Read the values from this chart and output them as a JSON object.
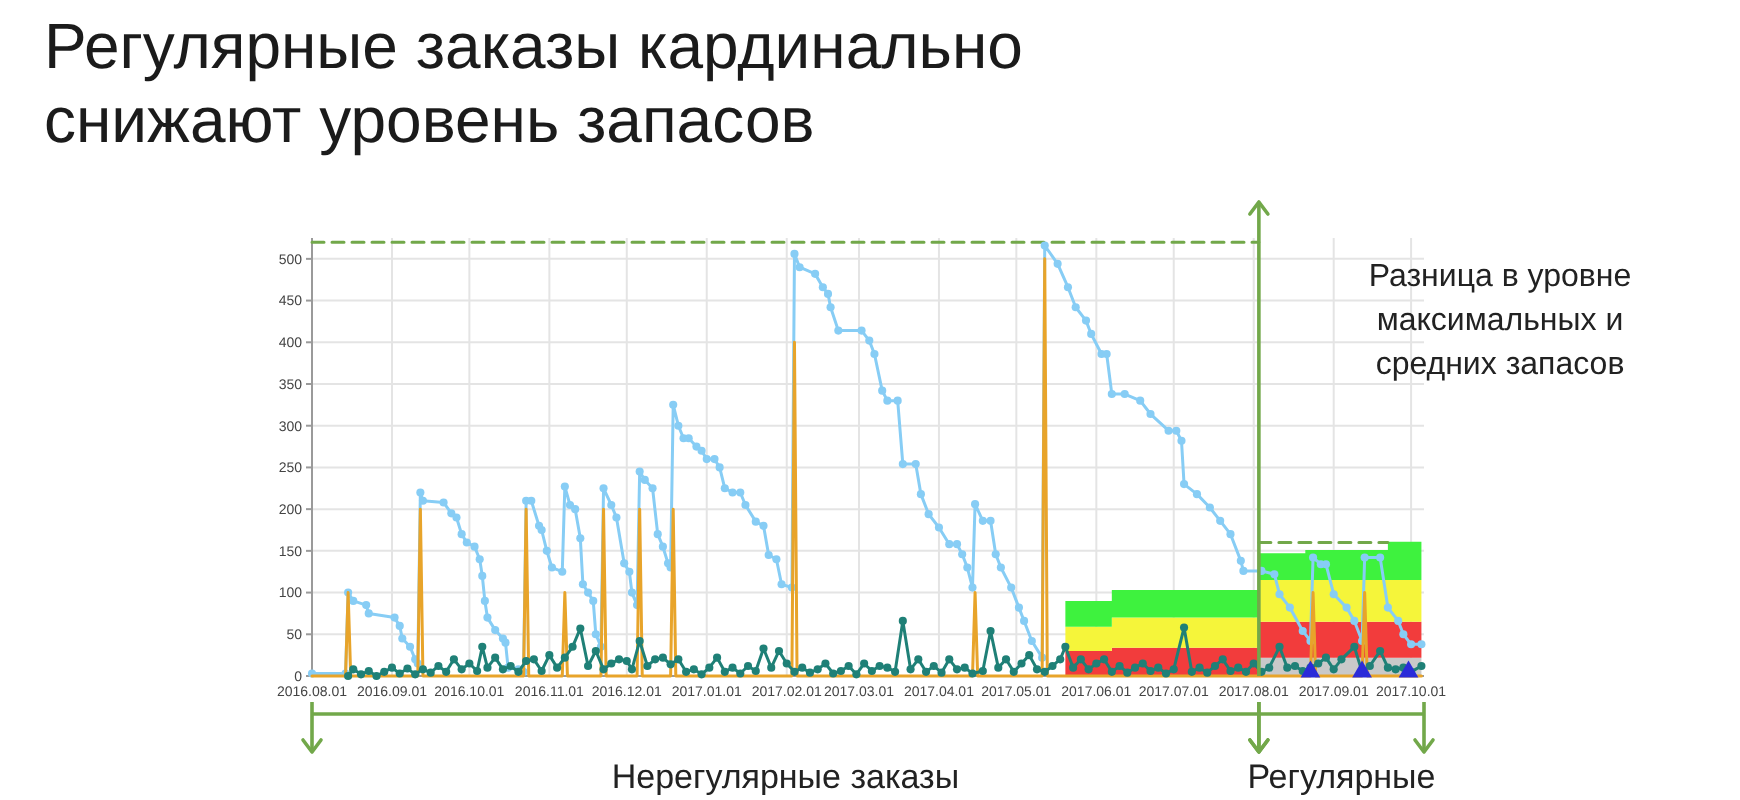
{
  "chart_data": {
    "type": "line",
    "title": "Регулярные заказы кардинально\nснижают уровень запасов",
    "annotations": [
      "Разница в уровне\nмаксимальных и\nсредних запасов",
      "Нерегулярные заказы",
      "Регулярные"
    ],
    "xlim": [
      "2016-08-01",
      "2017-10-06"
    ],
    "xticks": [
      {
        "value": "2016-08-01",
        "label": "2016.08.01"
      },
      {
        "value": "2016-09-01",
        "label": "2016.09.01"
      },
      {
        "value": "2016-10-01",
        "label": "2016.10.01"
      },
      {
        "value": "2016-11-01",
        "label": "2016.11.01"
      },
      {
        "value": "2016-12-01",
        "label": "2016.12.01"
      },
      {
        "value": "2017-01-01",
        "label": "2017.01.01"
      },
      {
        "value": "2017-02-01",
        "label": "2017.02.01"
      },
      {
        "value": "2017-03-01",
        "label": "2017.03.01"
      },
      {
        "value": "2017-04-01",
        "label": "2017.04.01"
      },
      {
        "value": "2017-05-01",
        "label": "2017.05.01"
      },
      {
        "value": "2017-06-01",
        "label": "2017.06.01"
      },
      {
        "value": "2017-07-01",
        "label": "2017.07.01"
      },
      {
        "value": "2017-08-01",
        "label": "2017.08.01"
      },
      {
        "value": "2017-09-01",
        "label": "2017.09.01"
      },
      {
        "value": "2017-10-01",
        "label": "2017.10.01"
      }
    ],
    "ylim": [
      0,
      525
    ],
    "yticks": [
      0,
      50,
      100,
      150,
      200,
      250,
      300,
      350,
      400,
      450,
      500
    ],
    "grid": true,
    "stacked": true,
    "ref_lines": [
      {
        "axis": "x",
        "value": "2017-08-03",
        "color": "#72a84a",
        "line_style": "solid"
      }
    ],
    "series": [
      {
        "type": "area",
        "color": "#c9c9c9",
        "x": [
          "2017-05-20",
          "2017-06-07",
          "2017-06-07",
          "2017-08-03",
          "2017-08-03",
          "2017-08-21",
          "2017-08-21",
          "2017-09-22",
          "2017-09-22",
          "2017-10-05"
        ],
        "values": [
          0,
          0,
          0,
          0,
          22,
          22,
          22,
          22,
          22,
          22
        ]
      },
      {
        "type": "area",
        "color": "#f23c3c",
        "x": [
          "2017-05-20",
          "2017-06-07",
          "2017-06-07",
          "2017-08-03",
          "2017-08-03",
          "2017-08-21",
          "2017-08-21",
          "2017-09-22",
          "2017-09-22",
          "2017-10-05"
        ],
        "values": [
          30,
          30,
          34,
          34,
          43,
          43,
          43,
          43,
          43,
          43
        ]
      },
      {
        "type": "area",
        "color": "#f5f53a",
        "x": [
          "2017-05-20",
          "2017-06-07",
          "2017-06-07",
          "2017-08-03",
          "2017-08-03",
          "2017-08-21",
          "2017-08-21",
          "2017-09-22",
          "2017-09-22",
          "2017-10-05"
        ],
        "values": [
          29,
          29,
          36,
          36,
          50,
          50,
          50,
          50,
          50,
          50
        ]
      },
      {
        "type": "area",
        "color": "#3ef23e",
        "x": [
          "2017-05-20",
          "2017-06-07",
          "2017-06-07",
          "2017-08-03",
          "2017-08-03",
          "2017-08-21",
          "2017-08-21",
          "2017-09-22",
          "2017-09-22",
          "2017-10-05"
        ],
        "values": [
          31,
          31,
          33,
          33,
          32,
          32,
          36,
          36,
          46,
          46
        ]
      },
      {
        "color": "#72a84a",
        "line_style": "dashed",
        "marker": "none",
        "x": [
          "2016-08-01",
          "2017-08-03"
        ],
        "values": [
          520,
          520
        ]
      },
      {
        "color": "#72a84a",
        "line_style": "dashed",
        "marker": "none",
        "x": [
          "2017-08-03",
          "2017-09-22"
        ],
        "values": [
          160,
          160
        ]
      },
      {
        "color": "#87cdf5",
        "marker": "circle",
        "x": [
          "2016-08-01",
          "2016-08-14",
          "2016-08-15",
          "2016-08-17",
          "2016-08-22",
          "2016-08-23",
          "2016-09-02",
          "2016-09-04",
          "2016-09-05",
          "2016-09-08",
          "2016-09-10",
          "2016-09-11",
          "2016-09-12",
          "2016-09-13",
          "2016-09-21",
          "2016-09-24",
          "2016-09-26",
          "2016-09-28",
          "2016-09-30",
          "2016-10-03",
          "2016-10-05",
          "2016-10-06",
          "2016-10-07",
          "2016-10-08",
          "2016-10-11",
          "2016-10-14",
          "2016-10-15",
          "2016-10-16",
          "2016-10-20",
          "2016-10-22",
          "2016-10-23",
          "2016-10-25",
          "2016-10-28",
          "2016-10-29",
          "2016-10-31",
          "2016-11-02",
          "2016-11-06",
          "2016-11-07",
          "2016-11-09",
          "2016-11-11",
          "2016-11-13",
          "2016-11-14",
          "2016-11-16",
          "2016-11-18",
          "2016-11-19",
          "2016-11-21",
          "2016-11-22",
          "2016-11-25",
          "2016-11-27",
          "2016-11-30",
          "2016-12-02",
          "2016-12-03",
          "2016-12-05",
          "2016-12-06",
          "2016-12-08",
          "2016-12-11",
          "2016-12-13",
          "2016-12-15",
          "2016-12-17",
          "2016-12-18",
          "2016-12-19",
          "2016-12-21",
          "2016-12-23",
          "2016-12-25",
          "2016-12-28",
          "2016-12-30",
          "2017-01-01",
          "2017-01-04",
          "2017-01-06",
          "2017-01-08",
          "2017-01-11",
          "2017-01-14",
          "2017-01-16",
          "2017-01-20",
          "2017-01-23",
          "2017-01-25",
          "2017-01-28",
          "2017-01-30",
          "2017-02-03",
          "2017-02-04",
          "2017-02-06",
          "2017-02-12",
          "2017-02-15",
          "2017-02-17",
          "2017-02-18",
          "2017-02-21",
          "2017-03-02",
          "2017-03-05",
          "2017-03-07",
          "2017-03-10",
          "2017-03-12",
          "2017-03-16",
          "2017-03-18",
          "2017-03-23",
          "2017-03-25",
          "2017-03-28",
          "2017-04-01",
          "2017-04-05",
          "2017-04-08",
          "2017-04-10",
          "2017-04-12",
          "2017-04-14",
          "2017-04-15",
          "2017-04-18",
          "2017-04-21",
          "2017-04-23",
          "2017-04-25",
          "2017-04-29",
          "2017-05-02",
          "2017-05-04",
          "2017-05-07",
          "2017-05-11",
          "2017-05-12",
          "2017-05-17",
          "2017-05-21",
          "2017-05-24",
          "2017-05-28",
          "2017-05-30",
          "2017-06-03",
          "2017-06-05",
          "2017-06-07",
          "2017-06-12",
          "2017-06-18",
          "2017-06-22",
          "2017-06-29",
          "2017-07-02",
          "2017-07-04",
          "2017-07-05",
          "2017-07-10",
          "2017-07-15",
          "2017-07-19",
          "2017-07-23",
          "2017-07-27",
          "2017-07-28",
          "2017-08-04",
          "2017-08-09",
          "2017-08-11",
          "2017-08-15",
          "2017-08-20",
          "2017-08-23",
          "2017-08-24",
          "2017-08-27",
          "2017-08-29",
          "2017-09-01",
          "2017-09-06",
          "2017-09-09",
          "2017-09-12",
          "2017-09-13",
          "2017-09-19",
          "2017-09-22",
          "2017-09-26",
          "2017-09-28",
          "2017-10-01",
          "2017-10-05"
        ],
        "values": [
          3,
          3,
          100,
          90,
          85,
          75,
          70,
          60,
          45,
          35,
          20,
          15,
          220,
          210,
          208,
          195,
          190,
          170,
          160,
          155,
          140,
          120,
          90,
          70,
          55,
          45,
          40,
          10,
          8,
          5,
          210,
          210,
          180,
          175,
          150,
          130,
          125,
          227,
          205,
          200,
          165,
          110,
          100,
          90,
          50,
          35,
          225,
          205,
          190,
          135,
          125,
          100,
          85,
          245,
          235,
          225,
          170,
          155,
          135,
          130,
          325,
          300,
          285,
          285,
          275,
          270,
          260,
          260,
          250,
          225,
          220,
          220,
          205,
          185,
          180,
          145,
          140,
          110,
          106,
          506,
          490,
          482,
          466,
          458,
          442,
          414,
          414,
          402,
          386,
          342,
          330,
          330,
          254,
          254,
          218,
          194,
          178,
          158,
          158,
          146,
          130,
          106,
          206,
          186,
          186,
          146,
          130,
          106,
          82,
          66,
          42,
          22,
          516,
          494,
          466,
          442,
          426,
          410,
          386,
          386,
          338,
          338,
          330,
          314,
          294,
          294,
          282,
          230,
          218,
          202,
          186,
          170,
          138,
          126,
          126,
          122,
          98,
          82,
          54,
          42,
          142,
          134,
          134,
          98,
          82,
          66,
          42,
          142,
          142,
          82,
          66,
          50,
          38,
          38
        ]
      },
      {
        "color": "#e8a42a",
        "marker": "none",
        "x": [
          "2016-08-01",
          "2016-08-14",
          "2016-08-15",
          "2016-08-16",
          "2016-09-11",
          "2016-09-12",
          "2016-09-13",
          "2016-10-22",
          "2016-10-23",
          "2016-10-24",
          "2016-11-06",
          "2016-11-07",
          "2016-11-08",
          "2016-11-21",
          "2016-11-22",
          "2016-11-23",
          "2016-12-05",
          "2016-12-06",
          "2016-12-07",
          "2016-12-18",
          "2016-12-19",
          "2016-12-20",
          "2017-02-03",
          "2017-02-04",
          "2017-02-05",
          "2017-04-14",
          "2017-04-15",
          "2017-04-16",
          "2017-05-11",
          "2017-05-12",
          "2017-05-13",
          "2017-08-23",
          "2017-08-24",
          "2017-08-25",
          "2017-09-12",
          "2017-09-13",
          "2017-09-14",
          "2017-10-05"
        ],
        "values": [
          0,
          0,
          100,
          0,
          0,
          200,
          0,
          0,
          200,
          0,
          0,
          100,
          0,
          0,
          200,
          0,
          0,
          200,
          0,
          0,
          200,
          0,
          0,
          400,
          0,
          0,
          100,
          0,
          0,
          500,
          0,
          0,
          100,
          0,
          0,
          100,
          0,
          0
        ]
      },
      {
        "color": "#1f8077",
        "marker": "circle",
        "x": [
          "2016-08-15",
          "2016-08-17",
          "2016-08-20",
          "2016-08-23",
          "2016-08-26",
          "2016-08-29",
          "2016-09-01",
          "2016-09-04",
          "2016-09-07",
          "2016-09-10",
          "2016-09-13",
          "2016-09-16",
          "2016-09-19",
          "2016-09-22",
          "2016-09-25",
          "2016-09-28",
          "2016-10-01",
          "2016-10-04",
          "2016-10-06",
          "2016-10-08",
          "2016-10-11",
          "2016-10-14",
          "2016-10-17",
          "2016-10-20",
          "2016-10-23",
          "2016-10-26",
          "2016-10-29",
          "2016-11-01",
          "2016-11-04",
          "2016-11-07",
          "2016-11-10",
          "2016-11-13",
          "2016-11-16",
          "2016-11-19",
          "2016-11-22",
          "2016-11-25",
          "2016-11-28",
          "2016-12-01",
          "2016-12-03",
          "2016-12-06",
          "2016-12-09",
          "2016-12-12",
          "2016-12-15",
          "2016-12-18",
          "2016-12-21",
          "2016-12-24",
          "2016-12-27",
          "2016-12-30",
          "2017-01-02",
          "2017-01-05",
          "2017-01-08",
          "2017-01-11",
          "2017-01-14",
          "2017-01-17",
          "2017-01-20",
          "2017-01-23",
          "2017-01-26",
          "2017-01-29",
          "2017-02-01",
          "2017-02-04",
          "2017-02-07",
          "2017-02-10",
          "2017-02-13",
          "2017-02-16",
          "2017-02-19",
          "2017-02-22",
          "2017-02-25",
          "2017-02-28",
          "2017-03-03",
          "2017-03-06",
          "2017-03-09",
          "2017-03-12",
          "2017-03-15",
          "2017-03-18",
          "2017-03-21",
          "2017-03-24",
          "2017-03-27",
          "2017-03-30",
          "2017-04-02",
          "2017-04-05",
          "2017-04-08",
          "2017-04-11",
          "2017-04-14",
          "2017-04-18",
          "2017-04-21",
          "2017-04-24",
          "2017-04-27",
          "2017-04-30",
          "2017-05-03",
          "2017-05-06",
          "2017-05-09",
          "2017-05-12",
          "2017-05-15",
          "2017-05-18",
          "2017-05-20",
          "2017-05-23",
          "2017-05-26",
          "2017-05-29",
          "2017-06-01",
          "2017-06-04",
          "2017-06-07",
          "2017-06-10",
          "2017-06-13",
          "2017-06-16",
          "2017-06-19",
          "2017-06-22",
          "2017-06-25",
          "2017-06-28",
          "2017-07-01",
          "2017-07-05",
          "2017-07-08",
          "2017-07-11",
          "2017-07-14",
          "2017-07-17",
          "2017-07-20",
          "2017-07-23",
          "2017-07-26",
          "2017-07-29",
          "2017-08-01",
          "2017-08-04",
          "2017-08-07",
          "2017-08-11",
          "2017-08-14",
          "2017-08-17",
          "2017-08-20",
          "2017-08-23",
          "2017-08-26",
          "2017-08-29",
          "2017-09-01",
          "2017-09-04",
          "2017-09-09",
          "2017-09-12",
          "2017-09-15",
          "2017-09-19",
          "2017-09-22",
          "2017-09-25",
          "2017-09-28",
          "2017-10-01",
          "2017-10-05"
        ],
        "values": [
          0,
          8,
          2,
          6,
          0,
          5,
          10,
          3,
          9,
          2,
          8,
          4,
          12,
          5,
          20,
          8,
          15,
          6,
          35,
          10,
          22,
          8,
          12,
          5,
          18,
          20,
          6,
          25,
          10,
          22,
          35,
          57,
          12,
          30,
          8,
          15,
          20,
          18,
          8,
          42,
          12,
          20,
          22,
          14,
          20,
          5,
          8,
          2,
          10,
          22,
          5,
          10,
          3,
          12,
          6,
          33,
          10,
          30,
          15,
          5,
          10,
          4,
          8,
          15,
          3,
          6,
          12,
          2,
          15,
          6,
          12,
          10,
          5,
          66,
          8,
          20,
          5,
          12,
          4,
          20,
          8,
          10,
          3,
          6,
          54,
          10,
          20,
          5,
          15,
          25,
          8,
          5,
          12,
          20,
          35,
          10,
          20,
          8,
          15,
          20,
          5,
          12,
          4,
          10,
          15,
          6,
          10,
          3,
          8,
          58,
          5,
          10,
          4,
          12,
          20,
          6,
          10,
          5,
          15,
          5,
          10,
          35,
          10,
          12,
          6,
          10,
          15,
          22,
          8,
          20,
          35,
          5,
          12,
          30,
          10,
          8,
          10,
          5,
          12
        ]
      },
      {
        "type": "scatter",
        "color": "#2b2bd9",
        "marker": "triangle",
        "x": [
          "2017-08-23",
          "2017-09-12",
          "2017-09-30"
        ],
        "values": [
          5,
          5,
          5
        ]
      }
    ]
  }
}
